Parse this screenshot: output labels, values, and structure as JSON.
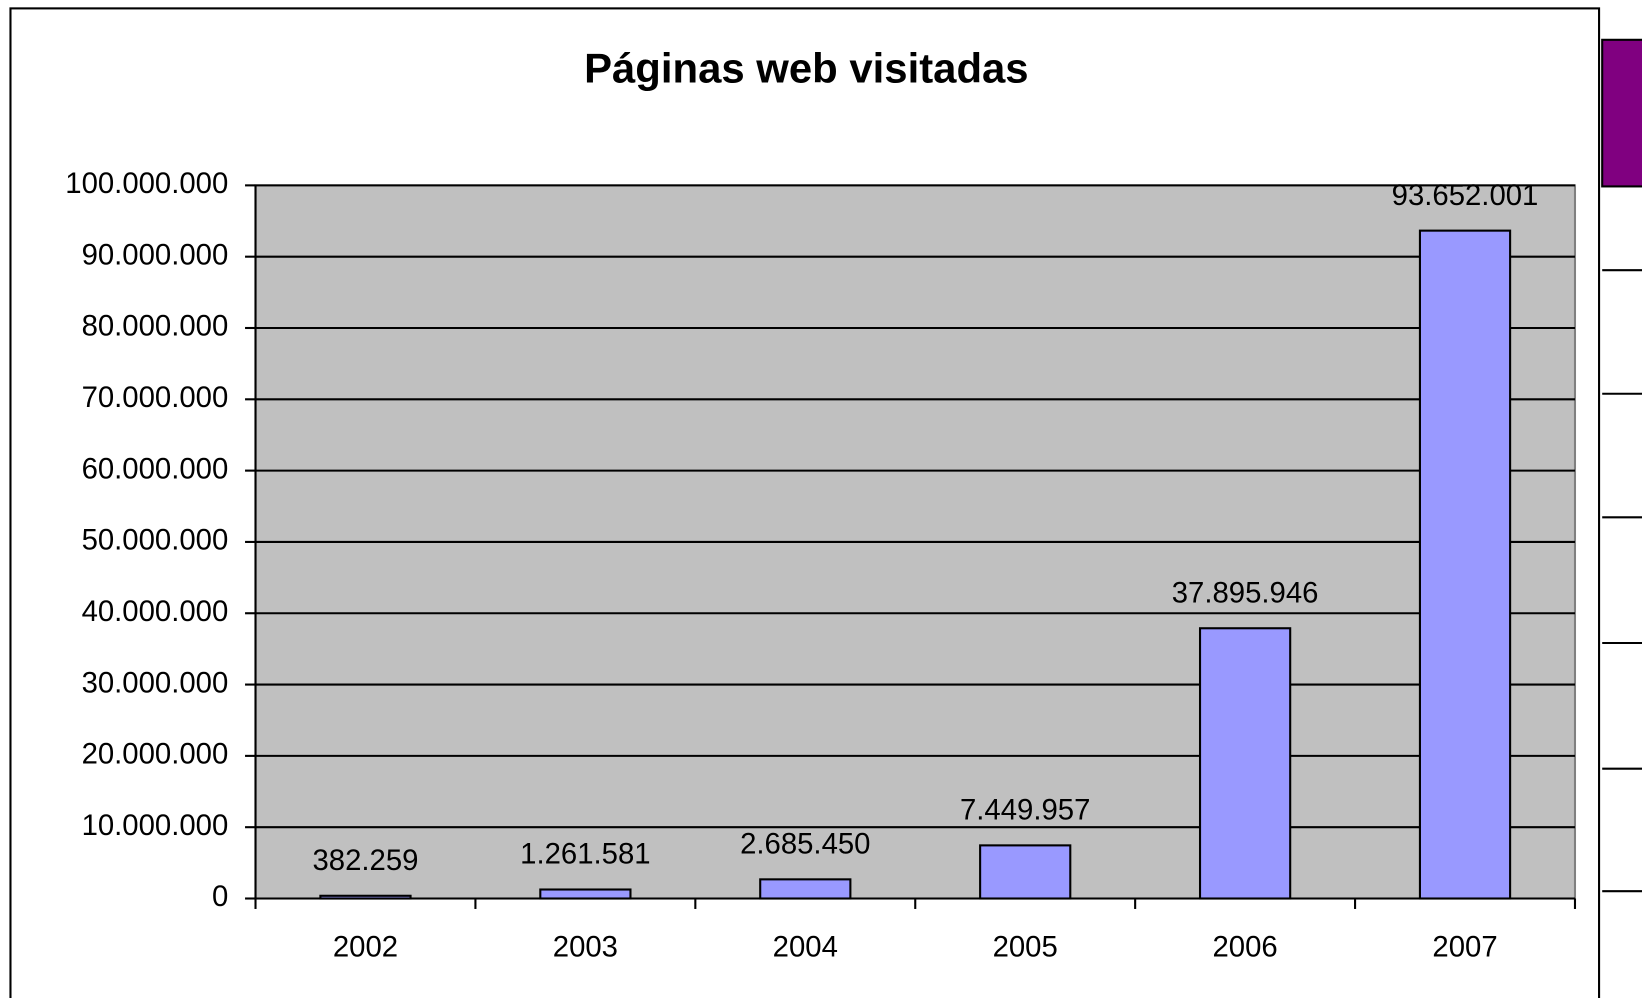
{
  "chart_data": {
    "type": "bar",
    "title": "Páginas web visitadas",
    "categories": [
      "2002",
      "2003",
      "2004",
      "2005",
      "2006",
      "2007"
    ],
    "values": [
      382259,
      1261581,
      2685450,
      7449957,
      37895946,
      93652001
    ],
    "value_labels": [
      "382.259",
      "1.261.581",
      "2.685.450",
      "7.449.957",
      "37.895.946",
      "93.652.001"
    ],
    "color": "#9999ff",
    "ylim": [
      0,
      100000000
    ],
    "yticks": [
      0,
      {
        "value": 10000000,
        "label": "10.000.000"
      },
      {
        "value": 20000000,
        "label": "20.000.000"
      },
      {
        "value": 30000000,
        "label": "30.000.000"
      },
      {
        "value": 40000000,
        "label": "40.000.000"
      },
      {
        "value": 50000000,
        "label": "50.000.000"
      },
      {
        "value": 60000000,
        "label": "60.000.000"
      },
      {
        "value": 70000000,
        "label": "70.000.000"
      },
      {
        "value": 80000000,
        "label": "80.000.000"
      },
      {
        "value": 90000000,
        "label": "90.000.000"
      },
      {
        "value": 100000000,
        "label": "100.000.000"
      }
    ],
    "grid": true
  }
}
